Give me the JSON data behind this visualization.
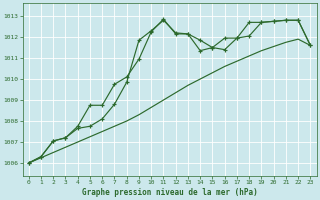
{
  "title": "Graphe pression niveau de la mer (hPa)",
  "xlim": [
    -0.5,
    23.5
  ],
  "ylim": [
    1005.4,
    1013.6
  ],
  "yticks": [
    1006,
    1007,
    1008,
    1009,
    1010,
    1011,
    1012,
    1013
  ],
  "xticks": [
    0,
    1,
    2,
    3,
    4,
    5,
    6,
    7,
    8,
    9,
    10,
    11,
    12,
    13,
    14,
    15,
    16,
    17,
    18,
    19,
    20,
    21,
    22,
    23
  ],
  "bg_color": "#cce8ec",
  "grid_color": "#ffffff",
  "line_color": "#2d6a2d",
  "line1_x": [
    0,
    1,
    2,
    3,
    4,
    5,
    6,
    7,
    8,
    9,
    10,
    11,
    12,
    13,
    14,
    15,
    16,
    17,
    18,
    19,
    20,
    21,
    22,
    23
  ],
  "line1_y": [
    1006.0,
    1006.25,
    1006.5,
    1006.75,
    1007.0,
    1007.25,
    1007.5,
    1007.75,
    1008.0,
    1008.3,
    1008.65,
    1009.0,
    1009.35,
    1009.7,
    1010.0,
    1010.3,
    1010.6,
    1010.85,
    1011.1,
    1011.35,
    1011.55,
    1011.75,
    1011.9,
    1011.6
  ],
  "line2_x": [
    0,
    1,
    2,
    3,
    4,
    5,
    6,
    7,
    8,
    9,
    10,
    11,
    12,
    13,
    14,
    15,
    16,
    17,
    18,
    19,
    20,
    21,
    22,
    23
  ],
  "line2_y": [
    1006.0,
    1006.3,
    1007.05,
    1007.2,
    1007.65,
    1007.75,
    1008.1,
    1008.8,
    1009.85,
    1011.85,
    1012.3,
    1012.8,
    1012.2,
    1012.15,
    1011.35,
    1011.5,
    1011.4,
    1011.95,
    1012.05,
    1012.7,
    1012.75,
    1012.8,
    1012.8,
    1011.6
  ],
  "line3_x": [
    0,
    1,
    2,
    3,
    4,
    5,
    6,
    7,
    8,
    9,
    10,
    11,
    12,
    13,
    14,
    15,
    16,
    17,
    18,
    19,
    20,
    21,
    22,
    23
  ],
  "line3_y": [
    1006.0,
    1006.3,
    1007.05,
    1007.2,
    1007.75,
    1008.75,
    1008.75,
    1009.75,
    1010.1,
    1010.95,
    1012.25,
    1012.85,
    1012.15,
    1012.15,
    1011.85,
    1011.5,
    1011.95,
    1011.95,
    1012.7,
    1012.7,
    1012.75,
    1012.8,
    1012.8,
    1011.6
  ]
}
